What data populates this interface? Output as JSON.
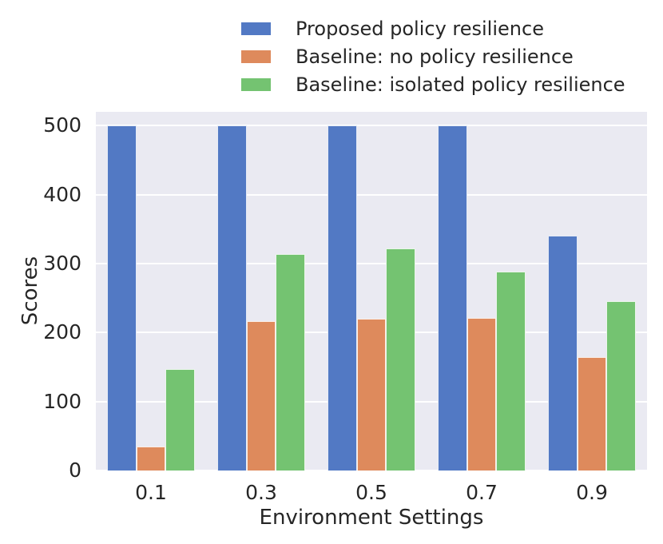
{
  "figure": {
    "background_color": "#ffffff",
    "plot_background_color": "#eaeaf2",
    "grid_color": "#ffffff",
    "text_color": "#262626"
  },
  "chart_data": {
    "type": "bar",
    "title": "",
    "xlabel": "Environment Settings",
    "ylabel": "Scores",
    "categories": [
      "0.1",
      "0.3",
      "0.5",
      "0.7",
      "0.9"
    ],
    "series": [
      {
        "name": "Proposed policy resilience",
        "color": "#5279c4",
        "values": [
          500,
          500,
          500,
          500,
          340
        ]
      },
      {
        "name": "Baseline: no policy resilience",
        "color": "#de8a5c",
        "values": [
          35,
          217,
          220,
          221,
          164
        ]
      },
      {
        "name": "Baseline: isolated policy resilience",
        "color": "#74c371",
        "values": [
          147,
          314,
          322,
          288,
          246
        ]
      }
    ],
    "ylim": [
      0,
      520
    ],
    "yticks": [
      0,
      100,
      200,
      300,
      400,
      500
    ],
    "grid": true,
    "legend_position": "top-center",
    "legend_frame": false
  }
}
